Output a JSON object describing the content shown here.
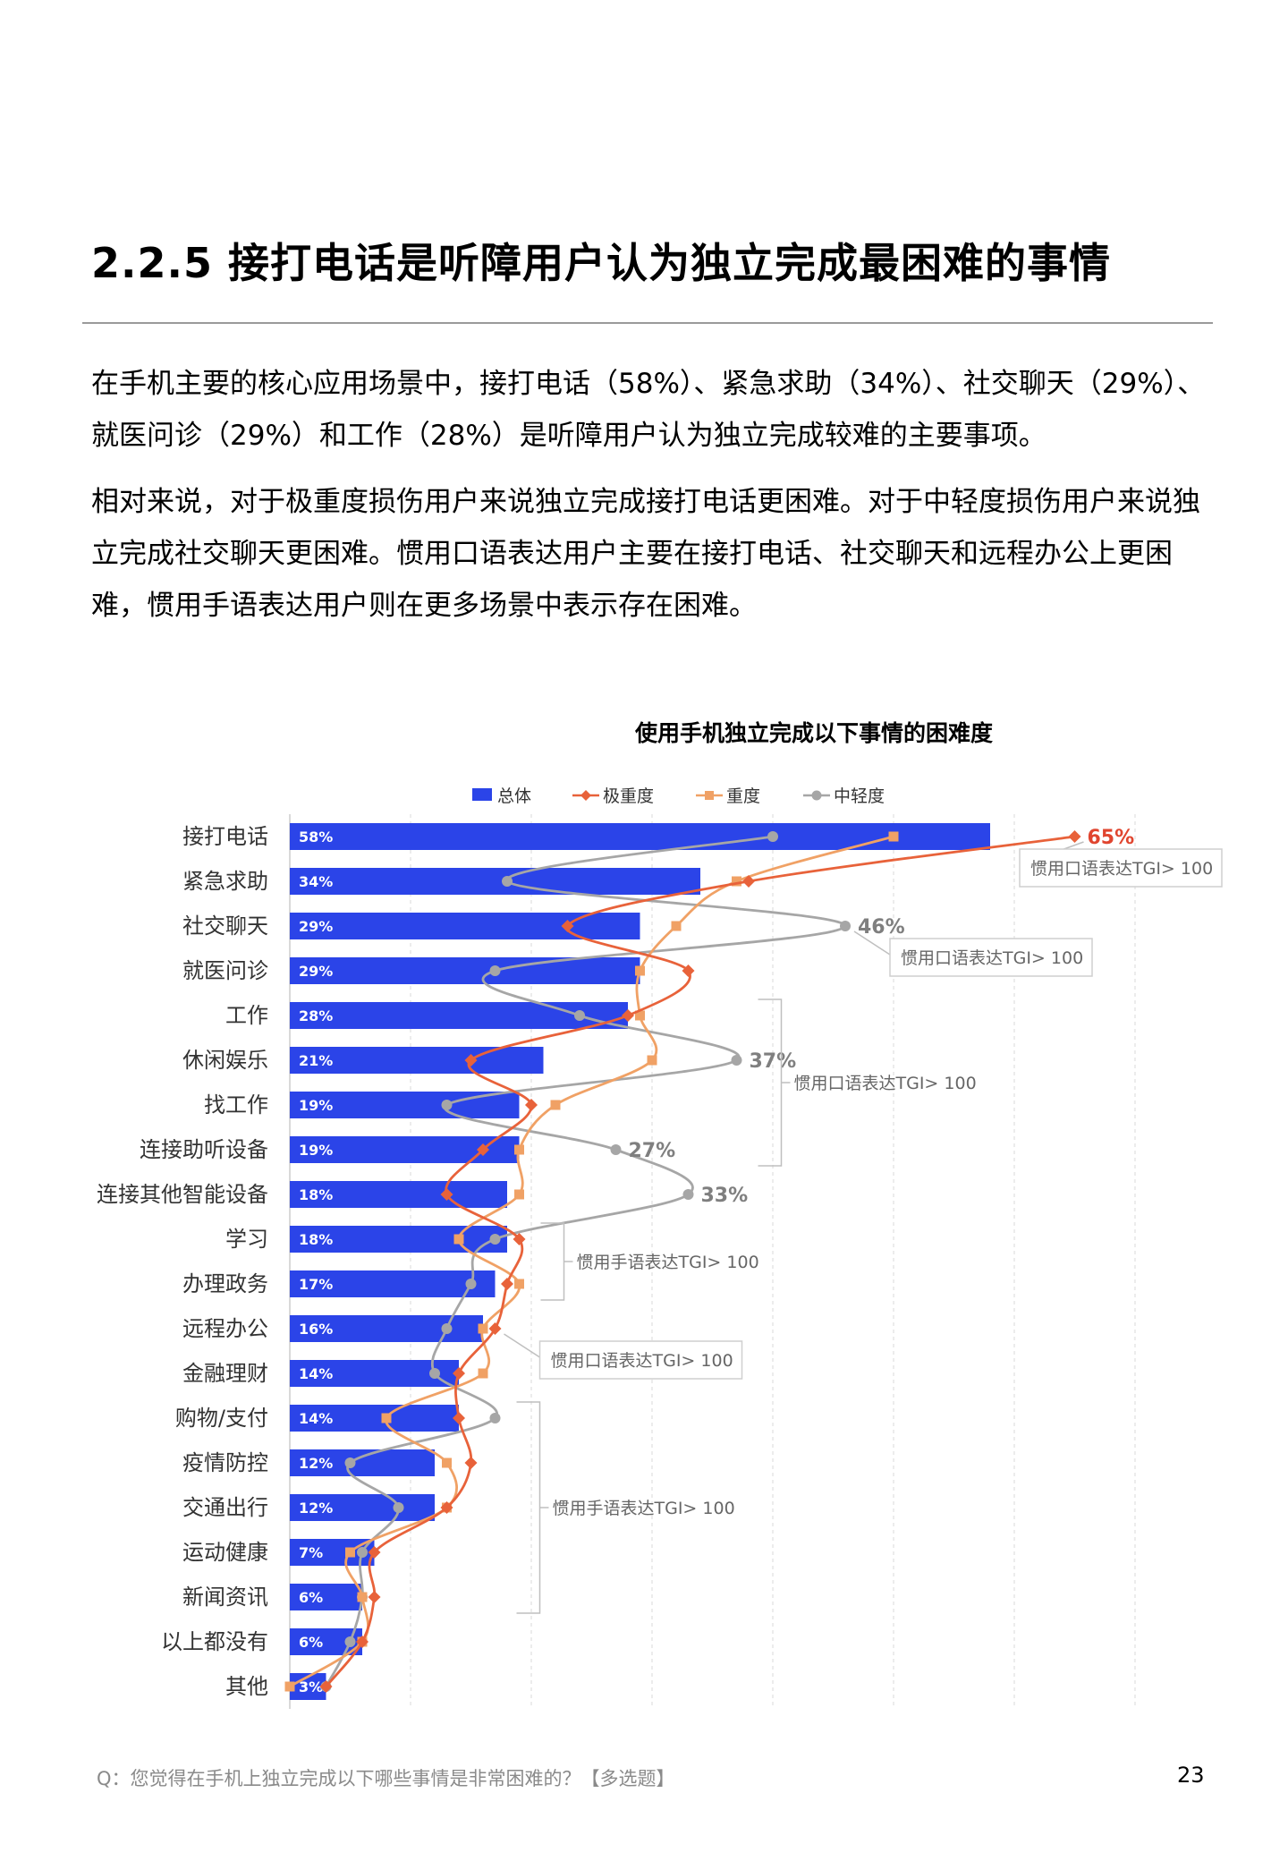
{
  "page": {
    "heading": "2.2.5 接打电话是听障用户认为独立完成最困难的事情",
    "paragraph1": "在手机主要的核心应用场景中，接打电话（58%）、紧急求助（34%）、社交聊天（29%）、就医问诊（29%）和工作（28%）是听障用户认为独立完成较难的主要事项。",
    "paragraph2": "相对来说，对于极重度损伤用户来说独立完成接打电话更困难。对于中轻度损伤用户来说独立完成社交聊天更困难。惯用口语表达用户主要在接打电话、社交聊天和远程办公上更困难，惯用手语表达用户则在更多场景中表示存在困难。",
    "footnote": "Q：您觉得在手机上独立完成以下哪些事情是非常困难的？【多选题】",
    "page_number": "23"
  },
  "chart_data": {
    "type": "bar",
    "title": "使用手机独立完成以下事情的困难度",
    "categories": [
      "接打电话",
      "紧急求助",
      "社交聊天",
      "就医问诊",
      "工作",
      "休闲娱乐",
      "找工作",
      "连接助听设备",
      "连接其他智能设备",
      "学习",
      "办理政务",
      "远程办公",
      "金融理财",
      "购物/支付",
      "疫情防控",
      "交通出行",
      "运动健康",
      "新闻资讯",
      "以上都没有",
      "其他"
    ],
    "series": [
      {
        "name": "总体",
        "type": "bar",
        "color": "#2b44e8",
        "values": [
          58,
          34,
          29,
          29,
          28,
          21,
          19,
          19,
          18,
          18,
          17,
          16,
          14,
          14,
          12,
          12,
          7,
          6,
          6,
          3
        ],
        "labels": [
          "58%",
          "34%",
          "29%",
          "29%",
          "28%",
          "21%",
          "19%",
          "19%",
          "18%",
          "18%",
          "17%",
          "16%",
          "14%",
          "14%",
          "12%",
          "12%",
          "7%",
          "6%",
          "6%",
          "3%"
        ]
      },
      {
        "name": "极重度",
        "type": "line",
        "marker": "diamond",
        "color": "#e8623a",
        "values": [
          65,
          38,
          23,
          33,
          28,
          15,
          20,
          16,
          13,
          19,
          18,
          17,
          14,
          14,
          15,
          13,
          7,
          7,
          6,
          3
        ]
      },
      {
        "name": "重度",
        "type": "line",
        "marker": "square",
        "color": "#f0a165",
        "values": [
          50,
          37,
          32,
          29,
          29,
          30,
          22,
          19,
          19,
          14,
          19,
          16,
          16,
          8,
          13,
          13,
          5,
          6,
          6,
          0
        ]
      },
      {
        "name": "中轻度",
        "type": "line",
        "marker": "circle",
        "color": "#a6a6a6",
        "values": [
          40,
          18,
          46,
          17,
          24,
          37,
          13,
          27,
          33,
          17,
          15,
          13,
          12,
          17,
          5,
          9,
          6,
          6,
          5,
          3
        ]
      }
    ],
    "point_labels": [
      {
        "series": "极重度",
        "index": 0,
        "text": "65%"
      },
      {
        "series": "中轻度",
        "index": 2,
        "text": "46%"
      },
      {
        "series": "中轻度",
        "index": 5,
        "text": "37%"
      },
      {
        "series": "中轻度",
        "index": 7,
        "text": "27%"
      },
      {
        "series": "中轻度",
        "index": 8,
        "text": "33%"
      }
    ],
    "annotations": [
      {
        "text": "惯用口语表达TGI> 100",
        "rows": [
          0
        ]
      },
      {
        "text": "惯用口语表达TGI> 100",
        "rows": [
          2
        ]
      },
      {
        "text": "惯用口语表达TGI> 100",
        "rows": [
          4,
          5,
          6,
          7
        ]
      },
      {
        "text": "惯用手语表达TGI> 100",
        "rows": [
          9,
          10
        ]
      },
      {
        "text": "惯用口语表达TGI> 100",
        "rows": [
          11
        ]
      },
      {
        "text": "惯用手语表达TGI> 100",
        "rows": [
          13,
          14,
          15,
          16,
          17
        ]
      }
    ],
    "xlim": [
      0,
      70
    ],
    "grid": true,
    "legend": "top"
  }
}
